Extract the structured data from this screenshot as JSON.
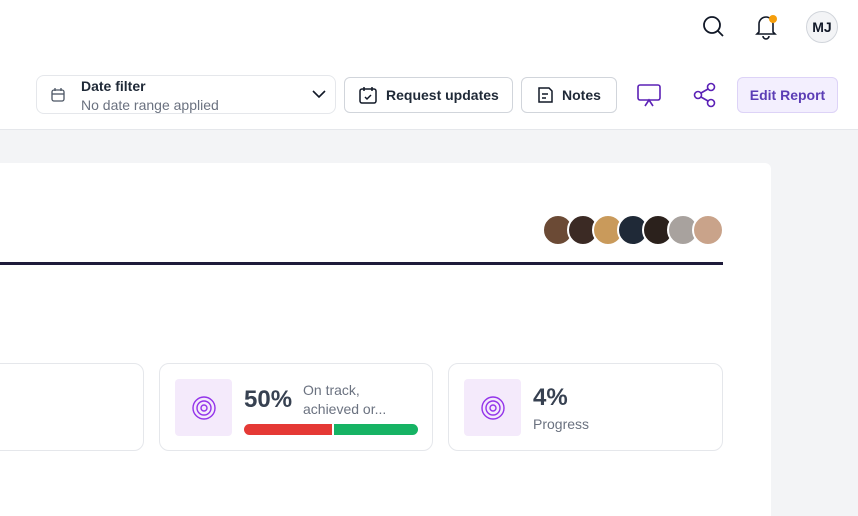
{
  "header": {
    "avatar_initials": "MJ"
  },
  "toolbar": {
    "date_filter": {
      "label": "Date filter",
      "placeholder": "No date range applied"
    },
    "buttons": [
      "Request updates",
      "Notes"
    ],
    "edit_button": "Edit Report"
  },
  "cards": [
    {
      "value": "50%",
      "label": "On track, achieved or..."
    },
    {
      "value": "4%",
      "label": "Progress"
    }
  ]
}
